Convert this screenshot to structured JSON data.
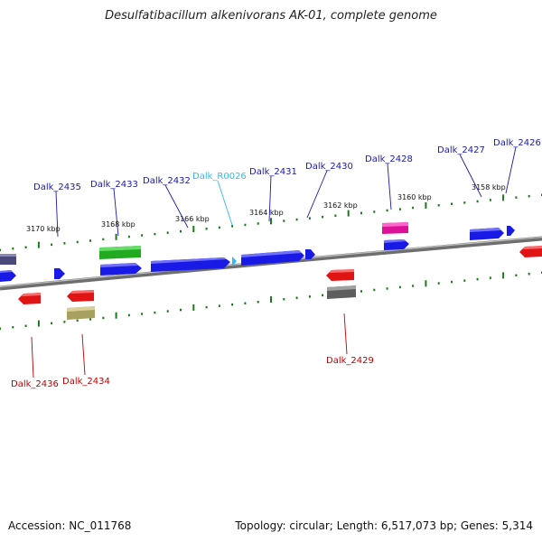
{
  "title": "Desulfatibacillum alkenivorans AK-01, complete genome",
  "accession": "Accession: NC_011768",
  "summary": "Topology: circular; Length: 6,517,073 bp; Genes: 5,314",
  "colors": {
    "blue": "#1a1ae6",
    "blue_label": "#1a1aa8",
    "red": "#e01414",
    "red_label": "#c00000",
    "green": "#33cc33",
    "magenta": "#ee22aa",
    "gray": "#6b6b6b",
    "olive": "#b8b070",
    "slate": "#5a5a8a",
    "cyan": "#33bbee",
    "tick": "#1c7a1c",
    "backbone": "#808080"
  },
  "kbp_ticks": [
    "3170 kbp",
    "3168 kbp",
    "3166 kbp",
    "3164 kbp",
    "3162 kbp",
    "3160 kbp",
    "3158 kbp"
  ],
  "top_labels": [
    "Dalk_2435",
    "Dalk_2433",
    "Dalk_2432",
    "Dalk_R0026",
    "Dalk_2431",
    "Dalk_2430",
    "Dalk_2428",
    "Dalk_2427",
    "Dalk_2426"
  ],
  "bottom_labels": [
    "Dalk_2436",
    "Dalk_2434",
    "Dalk_2429"
  ]
}
